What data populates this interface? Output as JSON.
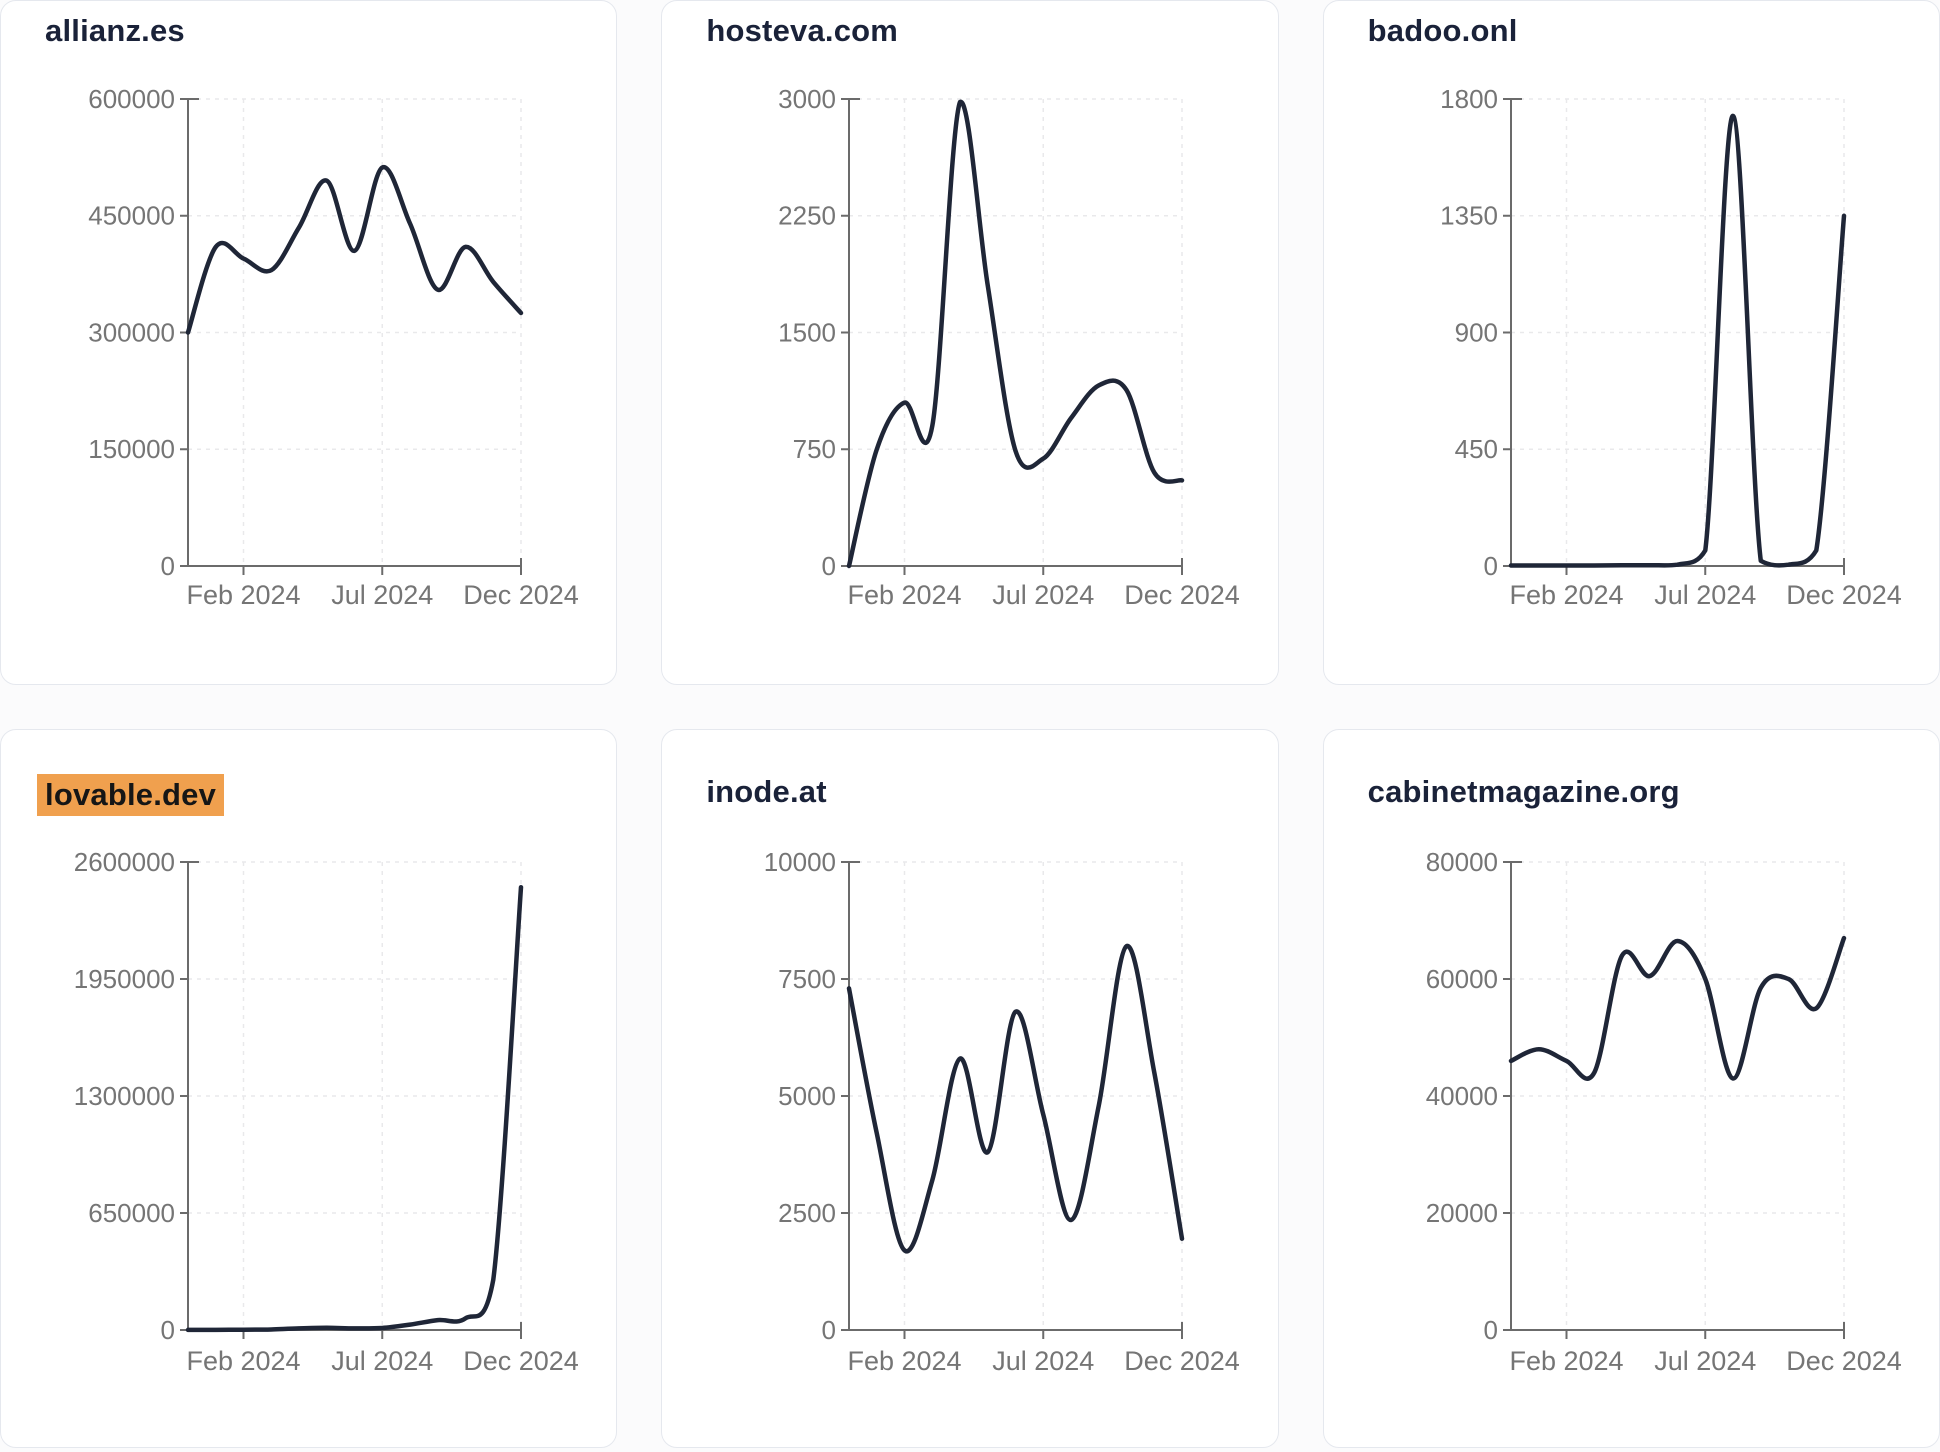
{
  "styles": {
    "page_bg": "#fbfbfc",
    "card_bg": "#ffffff",
    "card_border": "#e5e8ee",
    "title_color": "#1a2239",
    "highlight_bg": "#f0a04e",
    "highlight_text": "#161616",
    "line_color": "#1f2637",
    "axis_color": "#6b6b6b",
    "tick_label_color": "#757575",
    "grid_color": "#e9e9eb"
  },
  "chart_data": [
    {
      "type": "line",
      "title": "allianz.es",
      "title_highlighted": false,
      "x": [
        "Dec 2023",
        "Jan 2024",
        "Feb 2024",
        "Mar 2024",
        "Apr 2024",
        "May 2024",
        "Jun 2024",
        "Jul 2024",
        "Aug 2024",
        "Sep 2024",
        "Oct 2024",
        "Nov 2024",
        "Dec 2024"
      ],
      "values": [
        300000,
        410000,
        395000,
        380000,
        435000,
        495000,
        405000,
        512000,
        440000,
        355000,
        410000,
        365000,
        325000
      ],
      "ylim": [
        0,
        600000
      ],
      "y_ticks": [
        0,
        150000,
        300000,
        450000,
        600000
      ],
      "x_tick_labels": [
        "Feb 2024",
        "Jul 2024",
        "Dec 2024"
      ],
      "x_tick_month_index": [
        2,
        7,
        12
      ],
      "grid": true,
      "legend": "none"
    },
    {
      "type": "line",
      "title": "hosteva.com",
      "title_highlighted": false,
      "x": [
        "Dec 2023",
        "Jan 2024",
        "Feb 2024",
        "Mar 2024",
        "Apr 2024",
        "May 2024",
        "Jun 2024",
        "Jul 2024",
        "Aug 2024",
        "Sep 2024",
        "Oct 2024",
        "Nov 2024",
        "Dec 2024"
      ],
      "values": [
        0,
        750,
        1050,
        900,
        2980,
        1800,
        740,
        690,
        950,
        1160,
        1130,
        600,
        550
      ],
      "ylim": [
        0,
        3000
      ],
      "y_ticks": [
        0,
        750,
        1500,
        2250,
        3000
      ],
      "x_tick_labels": [
        "Feb 2024",
        "Jul 2024",
        "Dec 2024"
      ],
      "x_tick_month_index": [
        2,
        7,
        12
      ],
      "grid": true,
      "legend": "none"
    },
    {
      "type": "line",
      "title": "badoo.onl",
      "title_highlighted": false,
      "x": [
        "Dec 2023",
        "Jan 2024",
        "Feb 2024",
        "Mar 2024",
        "Apr 2024",
        "May 2024",
        "Jun 2024",
        "Jul 2024",
        "Aug 2024",
        "Sep 2024",
        "Oct 2024",
        "Nov 2024",
        "Dec 2024"
      ],
      "values": [
        2,
        2,
        2,
        2,
        3,
        3,
        5,
        60,
        1735,
        20,
        5,
        60,
        1350
      ],
      "ylim": [
        0,
        1800
      ],
      "y_ticks": [
        0,
        450,
        900,
        1350,
        1800
      ],
      "x_tick_labels": [
        "Feb 2024",
        "Jul 2024",
        "Dec 2024"
      ],
      "x_tick_month_index": [
        2,
        7,
        12
      ],
      "grid": true,
      "legend": "none"
    },
    {
      "type": "line",
      "title": "lovable.dev",
      "title_highlighted": true,
      "x": [
        "Dec 2023",
        "Jan 2024",
        "Feb 2024",
        "Mar 2024",
        "Apr 2024",
        "May 2024",
        "Jun 2024",
        "Jul 2024",
        "Aug 2024",
        "Sep 2024",
        "Oct 2024",
        "Nov 2024",
        "Dec 2024"
      ],
      "values": [
        500,
        800,
        1500,
        3000,
        9000,
        12000,
        9000,
        11000,
        30000,
        55000,
        65000,
        280000,
        2460000
      ],
      "ylim": [
        0,
        2600000
      ],
      "y_ticks": [
        0,
        650000,
        1300000,
        1950000,
        2600000
      ],
      "x_tick_labels": [
        "Feb 2024",
        "Jul 2024",
        "Dec 2024"
      ],
      "x_tick_month_index": [
        2,
        7,
        12
      ],
      "grid": true,
      "legend": "none"
    },
    {
      "type": "line",
      "title": "inode.at",
      "title_highlighted": false,
      "x": [
        "Dec 2023",
        "Jan 2024",
        "Feb 2024",
        "Mar 2024",
        "Apr 2024",
        "May 2024",
        "Jun 2024",
        "Jul 2024",
        "Aug 2024",
        "Sep 2024",
        "Oct 2024",
        "Nov 2024",
        "Dec 2024"
      ],
      "values": [
        7300,
        4200,
        1700,
        3200,
        5800,
        3800,
        6800,
        4600,
        2350,
        4800,
        8200,
        5500,
        1950
      ],
      "ylim": [
        0,
        10000
      ],
      "y_ticks": [
        0,
        2500,
        5000,
        7500,
        10000
      ],
      "x_tick_labels": [
        "Feb 2024",
        "Jul 2024",
        "Dec 2024"
      ],
      "x_tick_month_index": [
        2,
        7,
        12
      ],
      "grid": true,
      "legend": "none"
    },
    {
      "type": "line",
      "title": "cabinetmagazine.org",
      "title_highlighted": false,
      "x": [
        "Dec 2023",
        "Jan 2024",
        "Feb 2024",
        "Mar 2024",
        "Apr 2024",
        "May 2024",
        "Jun 2024",
        "Jul 2024",
        "Aug 2024",
        "Sep 2024",
        "Oct 2024",
        "Nov 2024",
        "Dec 2024"
      ],
      "values": [
        46000,
        48000,
        46000,
        44000,
        64000,
        60500,
        66500,
        60000,
        43000,
        58500,
        60000,
        55000,
        67000
      ],
      "ylim": [
        0,
        80000
      ],
      "y_ticks": [
        0,
        20000,
        40000,
        60000,
        80000
      ],
      "x_tick_labels": [
        "Feb 2024",
        "Jul 2024",
        "Dec 2024"
      ],
      "x_tick_month_index": [
        2,
        7,
        12
      ],
      "grid": true,
      "legend": "none"
    }
  ]
}
